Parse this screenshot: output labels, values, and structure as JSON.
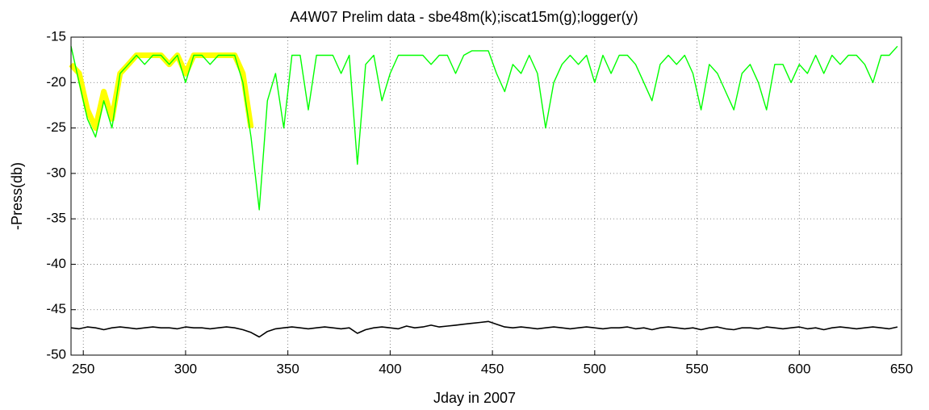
{
  "chart_data": {
    "type": "line",
    "title": "A4W07 Prelim data - sbe48m(k);iscat15m(g);logger(y)",
    "x_label": "Jday in 2007",
    "y_label": "-Press(db)",
    "xlim": [
      244,
      650
    ],
    "ylim": [
      -50,
      -15
    ],
    "xticks": [
      250,
      300,
      350,
      400,
      450,
      500,
      550,
      600,
      650
    ],
    "yticks": [
      -50,
      -45,
      -40,
      -35,
      -30,
      -25,
      -20,
      -15
    ],
    "grid": true,
    "x": [
      244,
      248,
      252,
      256,
      260,
      264,
      268,
      272,
      276,
      280,
      284,
      288,
      292,
      296,
      300,
      304,
      308,
      312,
      316,
      320,
      324,
      328,
      332,
      336,
      340,
      344,
      348,
      352,
      356,
      360,
      364,
      368,
      372,
      376,
      380,
      384,
      388,
      392,
      396,
      400,
      404,
      408,
      412,
      416,
      420,
      424,
      428,
      432,
      436,
      440,
      444,
      448,
      452,
      456,
      460,
      464,
      468,
      472,
      476,
      480,
      484,
      488,
      492,
      496,
      500,
      504,
      508,
      512,
      516,
      520,
      524,
      528,
      532,
      536,
      540,
      544,
      548,
      552,
      556,
      560,
      564,
      568,
      572,
      576,
      580,
      584,
      588,
      592,
      596,
      600,
      604,
      608,
      612,
      616,
      620,
      624,
      628,
      632,
      636,
      640,
      644,
      648
    ],
    "series": [
      {
        "name": "logger",
        "color": "#ffff00",
        "values": [
          -18,
          -19,
          -23,
          -25,
          -21,
          -24,
          -19,
          -18,
          -17,
          -17,
          -17,
          -17,
          -18,
          -17,
          -19,
          -17,
          -17,
          -17,
          -17,
          -17,
          -17,
          -19,
          -25,
          null,
          null,
          null,
          null,
          null,
          null,
          null,
          null,
          null,
          null,
          null,
          null,
          null,
          null,
          null,
          null,
          null,
          null,
          null,
          null,
          null,
          null,
          null,
          null,
          null,
          null,
          null,
          null,
          null,
          null,
          null,
          null,
          null,
          null,
          null,
          null,
          null,
          null,
          null,
          null,
          null,
          null,
          null,
          null,
          null,
          null,
          null,
          null,
          null,
          null,
          null,
          null,
          null,
          null,
          null,
          null,
          null,
          null,
          null,
          null,
          null,
          null,
          null,
          null,
          null,
          null,
          null,
          null,
          null,
          null,
          null,
          null,
          null,
          null,
          null,
          null,
          null,
          null,
          null
        ]
      },
      {
        "name": "iscat15m",
        "color": "#00ff00",
        "values": [
          -16,
          -20,
          -24,
          -26,
          -22,
          -25,
          -19,
          -18,
          -17,
          -18,
          -17,
          -17,
          -18,
          -17,
          -20,
          -17,
          -17,
          -18,
          -17,
          -17,
          -17,
          -20,
          -26,
          -34,
          -22,
          -19,
          -25,
          -17,
          -17,
          -23,
          -17,
          -17,
          -17,
          -19,
          -17,
          -29,
          -18,
          -17,
          -22,
          -19,
          -17,
          -17,
          -17,
          -17,
          -18,
          -17,
          -17,
          -19,
          -17,
          -16.5,
          -16.5,
          -16.5,
          -19,
          -21,
          -18,
          -19,
          -17,
          -19,
          -25,
          -20,
          -18,
          -17,
          -18,
          -17,
          -20,
          -17,
          -19,
          -17,
          -17,
          -18,
          -20,
          -22,
          -18,
          -17,
          -18,
          -17,
          -19,
          -23,
          -18,
          -19,
          -21,
          -23,
          -19,
          -18,
          -20,
          -23,
          -18,
          -18,
          -20,
          -18,
          -19,
          -17,
          -19,
          -17,
          -18,
          -17,
          -17,
          -18,
          -20,
          -17,
          -17,
          -16
        ]
      },
      {
        "name": "sbe48m",
        "color": "#000000",
        "values": [
          -47,
          -47.1,
          -46.9,
          -47,
          -47.2,
          -47,
          -46.9,
          -47,
          -47.1,
          -47,
          -46.9,
          -47,
          -47,
          -47.1,
          -46.9,
          -47,
          -47,
          -47.1,
          -47,
          -46.9,
          -47,
          -47.2,
          -47.5,
          -48,
          -47.4,
          -47.1,
          -47,
          -46.9,
          -47,
          -47.1,
          -47,
          -46.9,
          -47,
          -47.1,
          -47,
          -47.6,
          -47.2,
          -47,
          -46.9,
          -47,
          -47.1,
          -46.8,
          -47,
          -46.9,
          -46.7,
          -46.9,
          -46.8,
          -46.7,
          -46.6,
          -46.5,
          -46.4,
          -46.3,
          -46.6,
          -46.9,
          -47,
          -46.9,
          -47,
          -47.1,
          -47,
          -46.9,
          -47,
          -47.1,
          -47,
          -46.9,
          -47,
          -47.1,
          -47,
          -47,
          -46.9,
          -47.1,
          -47,
          -47.2,
          -47,
          -46.9,
          -47,
          -47.1,
          -47,
          -47.2,
          -47,
          -46.9,
          -47.1,
          -47.2,
          -47,
          -47,
          -47.1,
          -46.9,
          -47,
          -47.1,
          -47,
          -46.9,
          -47.1,
          -47,
          -47.2,
          -47,
          -46.9,
          -47,
          -47.1,
          -47,
          -46.9,
          -47,
          -47.1,
          -46.9
        ]
      }
    ]
  }
}
